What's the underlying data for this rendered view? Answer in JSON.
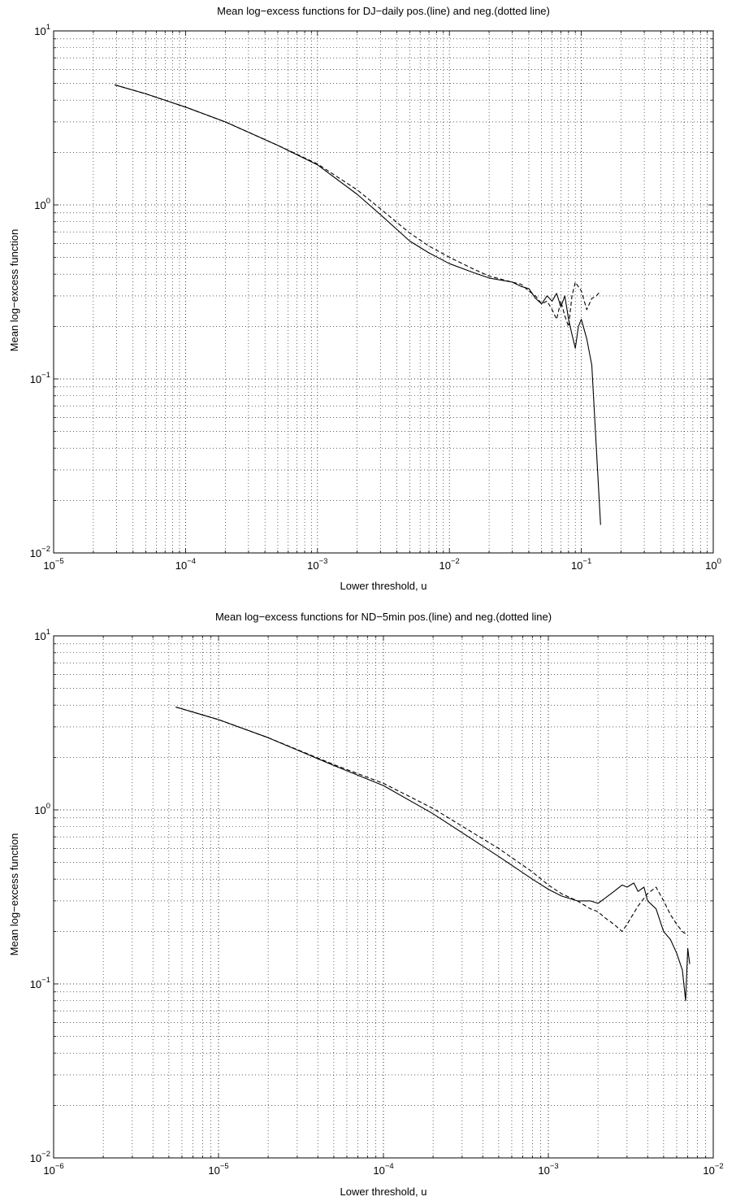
{
  "chart_data": [
    {
      "type": "line",
      "title": "Mean log−excess functions for DJ−daily pos.(line) and neg.(dotted line)",
      "xlabel": "Lower threshold, u",
      "ylabel": "Mean log−excess function",
      "xscale": "log",
      "yscale": "log",
      "xlim": [
        1e-05,
        1
      ],
      "ylim": [
        0.01,
        10
      ],
      "xticks": [
        {
          "base": "10",
          "exp": "−5"
        },
        {
          "base": "10",
          "exp": "−4"
        },
        {
          "base": "10",
          "exp": "−3"
        },
        {
          "base": "10",
          "exp": "−2"
        },
        {
          "base": "10",
          "exp": "−1"
        },
        {
          "base": "10",
          "exp": "0"
        }
      ],
      "yticks": [
        {
          "base": "10",
          "exp": "−2"
        },
        {
          "base": "10",
          "exp": "−1"
        },
        {
          "base": "10",
          "exp": "0"
        },
        {
          "base": "10",
          "exp": "1"
        }
      ],
      "grid": true,
      "series": [
        {
          "style": "solid",
          "x": [
            2.9e-05,
            5e-05,
            0.0001,
            0.0002,
            0.0005,
            0.001,
            0.002,
            0.003,
            0.005,
            0.007,
            0.01,
            0.015,
            0.02,
            0.03,
            0.035,
            0.04,
            0.045,
            0.05,
            0.055,
            0.06,
            0.065,
            0.07,
            0.075,
            0.08,
            0.085,
            0.09,
            0.095,
            0.1,
            0.11,
            0.12,
            0.13,
            0.14
          ],
          "y": [
            4.9,
            4.35,
            3.65,
            3.0,
            2.2,
            1.7,
            1.15,
            0.88,
            0.62,
            0.53,
            0.46,
            0.41,
            0.38,
            0.36,
            0.34,
            0.33,
            0.29,
            0.27,
            0.3,
            0.28,
            0.31,
            0.26,
            0.3,
            0.22,
            0.18,
            0.15,
            0.2,
            0.22,
            0.17,
            0.12,
            0.04,
            0.0145
          ]
        },
        {
          "style": "dashed",
          "x": [
            2.9e-05,
            5e-05,
            0.0001,
            0.0002,
            0.0005,
            0.001,
            0.002,
            0.003,
            0.005,
            0.007,
            0.01,
            0.015,
            0.02,
            0.03,
            0.035,
            0.04,
            0.045,
            0.05,
            0.055,
            0.06,
            0.065,
            0.07,
            0.075,
            0.08,
            0.085,
            0.09,
            0.1,
            0.11,
            0.12,
            0.13,
            0.14
          ],
          "y": [
            4.9,
            4.35,
            3.65,
            3.0,
            2.2,
            1.72,
            1.22,
            0.95,
            0.69,
            0.58,
            0.5,
            0.43,
            0.39,
            0.36,
            0.35,
            0.32,
            0.3,
            0.27,
            0.28,
            0.25,
            0.22,
            0.28,
            0.23,
            0.2,
            0.3,
            0.36,
            0.32,
            0.25,
            0.29,
            0.3,
            0.32
          ]
        }
      ]
    },
    {
      "type": "line",
      "title": "Mean log−excess functions for ND−5min pos.(line) and neg.(dotted line)",
      "xlabel": "Lower threshold, u",
      "ylabel": "Mean log−excess function",
      "xscale": "log",
      "yscale": "log",
      "xlim": [
        1e-06,
        0.01
      ],
      "ylim": [
        0.01,
        10
      ],
      "xticks": [
        {
          "base": "10",
          "exp": "−6"
        },
        {
          "base": "10",
          "exp": "−5"
        },
        {
          "base": "10",
          "exp": "−4"
        },
        {
          "base": "10",
          "exp": "−3"
        },
        {
          "base": "10",
          "exp": "−2"
        }
      ],
      "yticks": [
        {
          "base": "10",
          "exp": "−2"
        },
        {
          "base": "10",
          "exp": "−1"
        },
        {
          "base": "10",
          "exp": "0"
        },
        {
          "base": "10",
          "exp": "1"
        }
      ],
      "grid": true,
      "series": [
        {
          "style": "solid",
          "x": [
            5.5e-06,
            1e-05,
            2e-05,
            5e-05,
            0.0001,
            0.0002,
            0.0005,
            0.0008,
            0.001,
            0.0012,
            0.0015,
            0.0018,
            0.002,
            0.0022,
            0.0025,
            0.0028,
            0.003,
            0.0033,
            0.0035,
            0.0038,
            0.004,
            0.0045,
            0.005,
            0.0055,
            0.006,
            0.0065,
            0.0068,
            0.007,
            0.0072
          ],
          "y": [
            3.9,
            3.3,
            2.6,
            1.8,
            1.38,
            0.95,
            0.54,
            0.4,
            0.35,
            0.32,
            0.3,
            0.3,
            0.29,
            0.31,
            0.34,
            0.37,
            0.36,
            0.38,
            0.34,
            0.36,
            0.3,
            0.27,
            0.2,
            0.18,
            0.15,
            0.12,
            0.08,
            0.16,
            0.13
          ]
        },
        {
          "style": "dashed",
          "x": [
            5.5e-06,
            1e-05,
            2e-05,
            5e-05,
            0.0001,
            0.0002,
            0.0005,
            0.0008,
            0.001,
            0.0012,
            0.0015,
            0.0018,
            0.002,
            0.0022,
            0.0025,
            0.0028,
            0.003,
            0.0035,
            0.004,
            0.0045,
            0.005,
            0.0055,
            0.006,
            0.0065,
            0.007
          ],
          "y": [
            3.9,
            3.3,
            2.6,
            1.82,
            1.42,
            1.02,
            0.6,
            0.44,
            0.37,
            0.33,
            0.3,
            0.27,
            0.26,
            0.24,
            0.22,
            0.2,
            0.22,
            0.28,
            0.33,
            0.36,
            0.3,
            0.25,
            0.22,
            0.2,
            0.19
          ]
        }
      ]
    }
  ]
}
